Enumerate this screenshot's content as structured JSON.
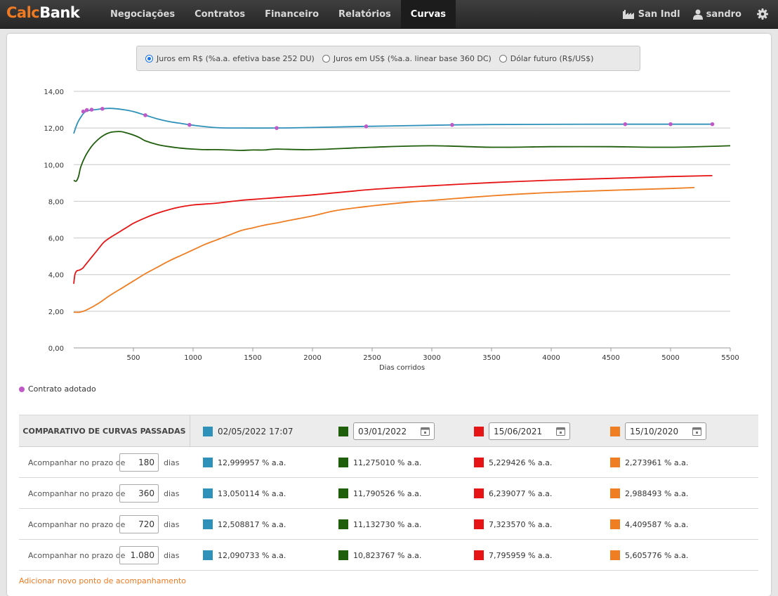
{
  "brand": {
    "part1": "Calc",
    "part2": "Bank"
  },
  "nav": {
    "items": [
      {
        "label": "Negociações",
        "active": false
      },
      {
        "label": "Contratos",
        "active": false
      },
      {
        "label": "Financeiro",
        "active": false
      },
      {
        "label": "Relatórios",
        "active": false
      },
      {
        "label": "Curvas",
        "active": true
      }
    ],
    "org": "San Indl",
    "user": "sandro"
  },
  "curve_selector": {
    "options": [
      {
        "label": "Juros em R$ (%a.a. efetiva base 252 DU)",
        "checked": true
      },
      {
        "label": "Juros em US$ (%a.a. linear base 360 DC)",
        "checked": false
      },
      {
        "label": "Dólar futuro (R$/US$)",
        "checked": false
      }
    ]
  },
  "chart_data": {
    "type": "line",
    "xlabel": "Dias corridos",
    "ylabel": "",
    "xlim": [
      0,
      5500
    ],
    "ylim": [
      0,
      14
    ],
    "x_ticks": [
      "500",
      "1000",
      "1500",
      "2000",
      "2500",
      "3000",
      "3500",
      "4000",
      "4500",
      "5000",
      "5500"
    ],
    "y_ticks": [
      "0,00",
      "2,00",
      "4,00",
      "6,00",
      "8,00",
      "10,00",
      "12,00",
      "14,00"
    ],
    "grid": true,
    "series": [
      {
        "color": "#2e91b9",
        "x": [
          0,
          30,
          60,
          90,
          120,
          150,
          180,
          240,
          300,
          360,
          420,
          500,
          600,
          700,
          800,
          900,
          1000,
          1200,
          1400,
          1700,
          2000,
          2450,
          3000,
          3180,
          3500,
          4000,
          4630,
          5000,
          5350
        ],
        "y": [
          11.7,
          12.25,
          12.6,
          12.85,
          12.95,
          12.98,
          13.0,
          13.05,
          13.07,
          13.05,
          13.0,
          12.9,
          12.7,
          12.5,
          12.35,
          12.25,
          12.15,
          12.02,
          12.0,
          12.0,
          12.03,
          12.09,
          12.15,
          12.17,
          12.19,
          12.2,
          12.21,
          12.21,
          12.21
        ]
      },
      {
        "color": "#1f5e0b",
        "x": [
          0,
          20,
          40,
          60,
          100,
          150,
          200,
          250,
          300,
          350,
          400,
          450,
          500,
          550,
          600,
          700,
          800,
          900,
          1000,
          1100,
          1200,
          1300,
          1400,
          1500,
          1600,
          1700,
          2000,
          2500,
          3000,
          3500,
          4000,
          4500,
          5000,
          5500
        ],
        "y": [
          9.15,
          9.1,
          9.35,
          9.9,
          10.5,
          11.0,
          11.35,
          11.6,
          11.75,
          11.8,
          11.8,
          11.72,
          11.62,
          11.48,
          11.3,
          11.1,
          10.98,
          10.9,
          10.85,
          10.82,
          10.82,
          10.8,
          10.78,
          10.8,
          10.8,
          10.85,
          10.82,
          10.95,
          11.03,
          10.95,
          10.98,
          10.98,
          10.95,
          11.03
        ]
      },
      {
        "color": "#e61414",
        "x": [
          0,
          10,
          25,
          50,
          75,
          100,
          150,
          200,
          250,
          300,
          350,
          400,
          450,
          500,
          600,
          700,
          800,
          900,
          1000,
          1100,
          1200,
          1400,
          1600,
          1800,
          2000,
          2500,
          3000,
          3500,
          4000,
          4500,
          5000,
          5350
        ],
        "y": [
          3.5,
          4.0,
          4.2,
          4.25,
          4.35,
          4.55,
          4.95,
          5.35,
          5.75,
          6.0,
          6.2,
          6.4,
          6.6,
          6.8,
          7.1,
          7.35,
          7.55,
          7.7,
          7.8,
          7.85,
          7.9,
          8.05,
          8.15,
          8.25,
          8.35,
          8.65,
          8.85,
          9.02,
          9.15,
          9.25,
          9.35,
          9.4
        ]
      },
      {
        "color": "#ef7d22",
        "x": [
          0,
          50,
          100,
          200,
          300,
          400,
          500,
          600,
          700,
          800,
          900,
          1000,
          1100,
          1200,
          1300,
          1400,
          1500,
          1600,
          1700,
          1800,
          2000,
          2200,
          2500,
          2800,
          3000,
          3500,
          4000,
          4500,
          5000,
          5200
        ],
        "y": [
          1.95,
          1.95,
          2.05,
          2.4,
          2.85,
          3.25,
          3.65,
          4.05,
          4.4,
          4.75,
          5.05,
          5.35,
          5.65,
          5.9,
          6.15,
          6.4,
          6.55,
          6.7,
          6.82,
          6.95,
          7.2,
          7.5,
          7.75,
          7.95,
          8.05,
          8.3,
          8.48,
          8.6,
          8.7,
          8.75
        ]
      }
    ],
    "markers": {
      "name": "Contrato adotado",
      "color": "#c158c8",
      "x": [
        80,
        110,
        150,
        240,
        600,
        970,
        1700,
        2450,
        3170,
        4620,
        5000,
        5350
      ],
      "y": [
        12.9,
        12.98,
        13.0,
        13.05,
        12.7,
        12.17,
        12.0,
        12.09,
        12.17,
        12.21,
        12.21,
        12.21
      ]
    },
    "legend": "bottom-left"
  },
  "comparison": {
    "title": "COMPARATIVO DE CURVAS PASSADAS",
    "columns": [
      {
        "color": "#2e91b9",
        "date": "02/05/2022 17:07",
        "editable": false
      },
      {
        "color": "#1f5e0b",
        "date": "03/01/2022",
        "editable": true
      },
      {
        "color": "#e61414",
        "date": "15/06/2021",
        "editable": true
      },
      {
        "color": "#ef7d22",
        "date": "15/10/2020",
        "editable": true
      }
    ],
    "row_label": "Acompanhar no prazo de",
    "unit": "dias",
    "rows": [
      {
        "days": "180",
        "values": [
          "12,999957 % a.a.",
          "11,275010 % a.a.",
          "5,229426 % a.a.",
          "2,273961 % a.a."
        ]
      },
      {
        "days": "360",
        "values": [
          "13,050114 % a.a.",
          "11,790526 % a.a.",
          "6,239077 % a.a.",
          "2,988493 % a.a."
        ]
      },
      {
        "days": "720",
        "values": [
          "12,508817 % a.a.",
          "11,132730 % a.a.",
          "7,323570 % a.a.",
          "4,409587 % a.a."
        ]
      },
      {
        "days": "1.080",
        "values": [
          "12,090733 % a.a.",
          "10,823767 % a.a.",
          "7,795959 % a.a.",
          "5,605776 % a.a."
        ]
      }
    ],
    "add_link": "Adicionar novo ponto de acompanhamento"
  }
}
